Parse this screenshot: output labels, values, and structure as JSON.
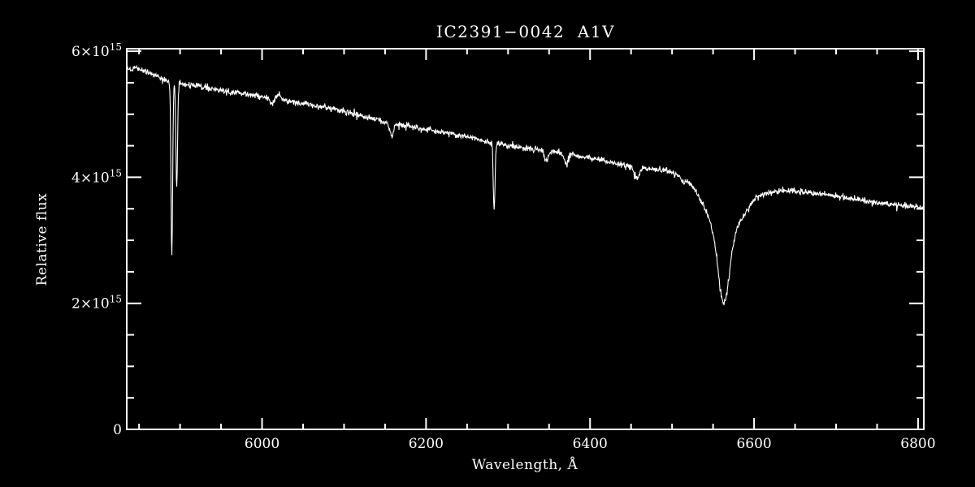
{
  "colors": {
    "background": "#000000",
    "foreground": "#ffffff"
  },
  "chart_data": {
    "type": "line",
    "title": "IC2391−0042  A1V",
    "xlabel": "Wavelength, Å",
    "ylabel": "Relative flux",
    "legend": "none",
    "grid": "off",
    "flux_unit_scale": "1e15",
    "x_range_angstrom": [
      5835,
      6807
    ],
    "y_range_flux_1e15": [
      0,
      6.04
    ],
    "x_axis": {
      "major_ticks": [
        {
          "value": 6000,
          "label": "6000"
        },
        {
          "value": 6200,
          "label": "6200"
        },
        {
          "value": 6400,
          "label": "6400"
        },
        {
          "value": 6600,
          "label": "6600"
        },
        {
          "value": 6800,
          "label": "6800"
        }
      ],
      "minor_tick_step": 50
    },
    "y_axis": {
      "major_ticks": [
        {
          "value": 0,
          "label": "0"
        },
        {
          "value": 2,
          "label": "2×10^15"
        },
        {
          "value": 4,
          "label": "4×10^15"
        },
        {
          "value": 6,
          "label": "6×10^15"
        }
      ],
      "minor_tick_step": 0.5
    },
    "spectrum": {
      "sample_step_angstrom": 0.5,
      "noise_sigma_flux_1e15": 0.024,
      "spike_probability": 0.02,
      "spike_extra_depth": 0.07,
      "continuum_points_flux_1e15": [
        [
          5835,
          5.7
        ],
        [
          5845,
          5.74
        ],
        [
          5860,
          5.68
        ],
        [
          5890,
          5.5
        ],
        [
          5920,
          5.45
        ],
        [
          5950,
          5.38
        ],
        [
          6000,
          5.28
        ],
        [
          6050,
          5.17
        ],
        [
          6100,
          5.05
        ],
        [
          6150,
          4.88
        ],
        [
          6200,
          4.76
        ],
        [
          6250,
          4.64
        ],
        [
          6300,
          4.5
        ],
        [
          6350,
          4.42
        ],
        [
          6400,
          4.31
        ],
        [
          6450,
          4.17
        ],
        [
          6500,
          4.1
        ],
        [
          6540,
          4.03
        ],
        [
          6590,
          3.88
        ],
        [
          6620,
          3.79
        ],
        [
          6640,
          3.79
        ],
        [
          6680,
          3.74
        ],
        [
          6700,
          3.7
        ],
        [
          6750,
          3.6
        ],
        [
          6807,
          3.51
        ]
      ],
      "absorption_features": [
        {
          "name": "Na I D2 5890",
          "center": 5889.95,
          "depth": 2.76,
          "sigma": 1.0
        },
        {
          "name": "Na I D1 5896",
          "center": 5895.92,
          "depth": 1.67,
          "sigma": 1.0
        },
        {
          "name": "dip 6012",
          "center": 6012,
          "depth": 0.1,
          "sigma": 2.0
        },
        {
          "name": "dip 6158",
          "center": 6158,
          "depth": 0.22,
          "sigma": 2.2
        },
        {
          "name": "line 6283",
          "center": 6283,
          "depth": 1.08,
          "sigma": 1.1
        },
        {
          "name": "Si II 6347",
          "center": 6347,
          "depth": 0.16,
          "sigma": 2.4
        },
        {
          "name": "Si II 6371",
          "center": 6371,
          "depth": 0.15,
          "sigma": 2.4
        },
        {
          "name": "dip 6457",
          "center": 6457,
          "depth": 0.18,
          "sigma": 3.0
        },
        {
          "name": "dip 6513",
          "center": 6513,
          "depth": 0.09,
          "sigma": 2.5
        },
        {
          "name": "H-alpha core 6563",
          "center": 6563,
          "depth": 1.05,
          "sigma": 6.5
        },
        {
          "name": "H-alpha wings 6563",
          "center": 6563,
          "depth": 0.9,
          "sigma": 22
        }
      ],
      "emission_bumps": [
        {
          "name": "bump 6021",
          "center": 6021,
          "height": 0.08,
          "sigma": 3.0
        }
      ]
    }
  }
}
